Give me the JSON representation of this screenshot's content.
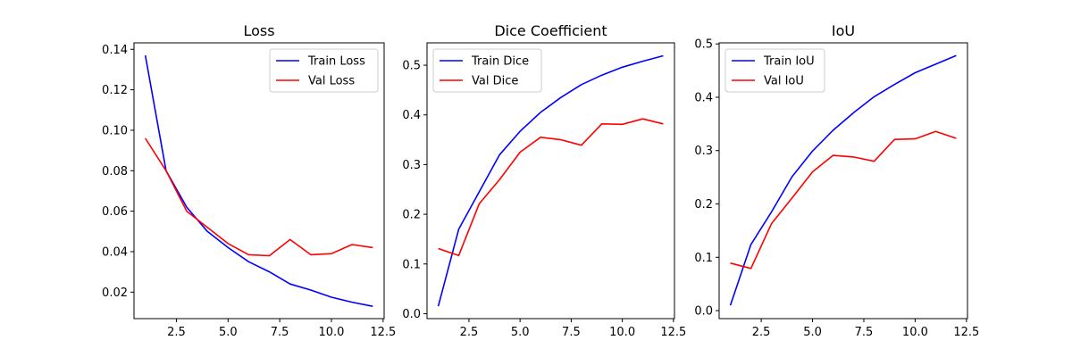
{
  "chart_data": [
    {
      "type": "line",
      "title": "Loss",
      "xlabel": "",
      "ylabel": "",
      "x": [
        1,
        2,
        3,
        4,
        5,
        6,
        7,
        8,
        9,
        10,
        11,
        12
      ],
      "xlim": [
        0.45,
        12.55
      ],
      "ylim": [
        0.0069,
        0.1432
      ],
      "xticks": [
        2.5,
        5.0,
        7.5,
        10.0,
        12.5
      ],
      "xtick_labels": [
        "2.5",
        "5.0",
        "7.5",
        "10.0",
        "12.5"
      ],
      "yticks": [
        0.02,
        0.04,
        0.06,
        0.08,
        0.1,
        0.12,
        0.14
      ],
      "ytick_labels": [
        "0.02",
        "0.04",
        "0.06",
        "0.08",
        "0.10",
        "0.12",
        "0.14"
      ],
      "legend": "top-right",
      "grid": false,
      "series": [
        {
          "name": "Train Loss",
          "color": "#0000ff",
          "values": [
            0.137,
            0.08,
            0.062,
            0.05,
            0.042,
            0.035,
            0.03,
            0.024,
            0.021,
            0.0175,
            0.015,
            0.013
          ]
        },
        {
          "name": "Val Loss",
          "color": "#ff0000",
          "values": [
            0.096,
            0.08,
            0.06,
            0.052,
            0.044,
            0.0385,
            0.038,
            0.046,
            0.0385,
            0.039,
            0.0435,
            0.042
          ]
        }
      ]
    },
    {
      "type": "line",
      "title": "Dice Coefficient",
      "xlabel": "",
      "ylabel": "",
      "x": [
        1,
        2,
        3,
        4,
        5,
        6,
        7,
        8,
        9,
        10,
        11,
        12
      ],
      "xlim": [
        0.45,
        12.55
      ],
      "ylim": [
        -0.01,
        0.545
      ],
      "xticks": [
        2.5,
        5.0,
        7.5,
        10.0,
        12.5
      ],
      "xtick_labels": [
        "2.5",
        "5.0",
        "7.5",
        "10.0",
        "12.5"
      ],
      "yticks": [
        0.0,
        0.1,
        0.2,
        0.3,
        0.4,
        0.5
      ],
      "ytick_labels": [
        "0.0",
        "0.1",
        "0.2",
        "0.3",
        "0.4",
        "0.5"
      ],
      "legend": "top-left",
      "grid": false,
      "series": [
        {
          "name": "Train Dice",
          "color": "#0000ff",
          "values": [
            0.015,
            0.17,
            0.245,
            0.32,
            0.367,
            0.405,
            0.435,
            0.461,
            0.48,
            0.496,
            0.508,
            0.519
          ]
        },
        {
          "name": "Val Dice",
          "color": "#ff0000",
          "values": [
            0.131,
            0.117,
            0.221,
            0.27,
            0.325,
            0.355,
            0.35,
            0.339,
            0.382,
            0.381,
            0.392,
            0.382
          ]
        }
      ]
    },
    {
      "type": "line",
      "title": "IoU",
      "xlabel": "",
      "ylabel": "",
      "x": [
        1,
        2,
        3,
        4,
        5,
        6,
        7,
        8,
        9,
        10,
        11,
        12
      ],
      "xlim": [
        0.45,
        12.55
      ],
      "ylim": [
        -0.015,
        0.502
      ],
      "xticks": [
        2.5,
        5.0,
        7.5,
        10.0,
        12.5
      ],
      "xtick_labels": [
        "2.5",
        "5.0",
        "7.5",
        "10.0",
        "12.5"
      ],
      "yticks": [
        0.0,
        0.1,
        0.2,
        0.3,
        0.4,
        0.5
      ],
      "ytick_labels": [
        "0.0",
        "0.1",
        "0.2",
        "0.3",
        "0.4",
        "0.5"
      ],
      "legend": "top-left",
      "grid": false,
      "series": [
        {
          "name": "Train IoU",
          "color": "#0000ff",
          "values": [
            0.01,
            0.124,
            0.185,
            0.251,
            0.299,
            0.338,
            0.371,
            0.401,
            0.424,
            0.446,
            0.462,
            0.478
          ]
        },
        {
          "name": "Val IoU",
          "color": "#ff0000",
          "values": [
            0.089,
            0.079,
            0.163,
            0.211,
            0.26,
            0.291,
            0.288,
            0.28,
            0.321,
            0.322,
            0.336,
            0.323
          ]
        }
      ]
    }
  ]
}
